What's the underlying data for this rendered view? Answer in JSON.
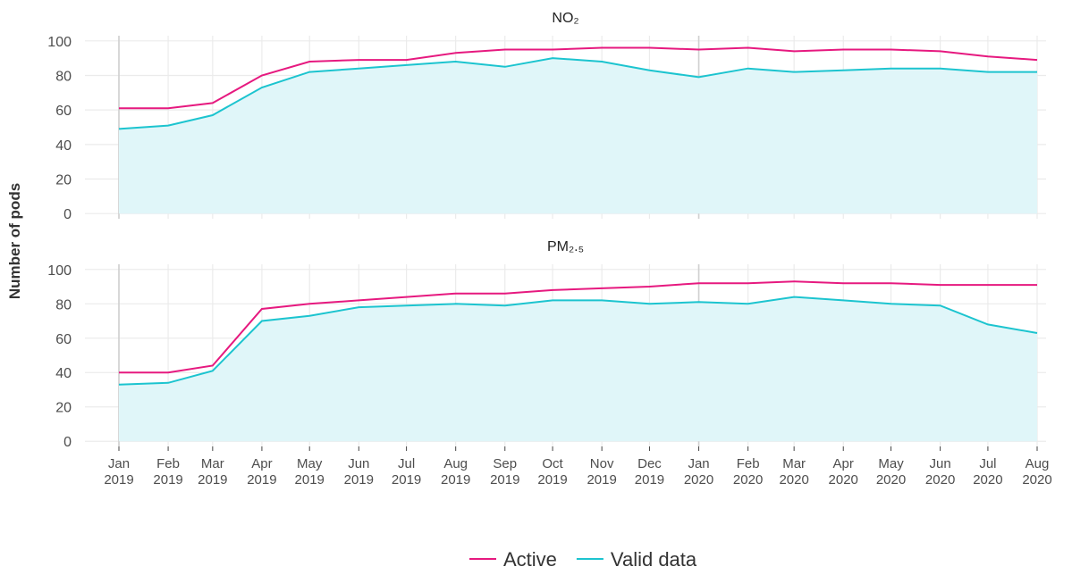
{
  "ylabel": "Number of pods",
  "xlim": [
    "2019-01",
    "2020-08"
  ],
  "xticks": [
    {
      "value": "2019-01",
      "label": "Jan 2019"
    },
    {
      "value": "2019-02",
      "label": "Feb 2019"
    },
    {
      "value": "2019-03",
      "label": "Mar 2019"
    },
    {
      "value": "2019-04",
      "label": "Apr 2019"
    },
    {
      "value": "2019-05",
      "label": "May 2019"
    },
    {
      "value": "2019-06",
      "label": "Jun 2019"
    },
    {
      "value": "2019-07",
      "label": "Jul 2019"
    },
    {
      "value": "2019-08",
      "label": "Aug 2019"
    },
    {
      "value": "2019-09",
      "label": "Sep 2019"
    },
    {
      "value": "2019-10",
      "label": "Oct 2019"
    },
    {
      "value": "2019-11",
      "label": "Nov 2019"
    },
    {
      "value": "2019-12",
      "label": "Dec 2019"
    },
    {
      "value": "2020-01",
      "label": "Jan 2020"
    },
    {
      "value": "2020-02",
      "label": "Feb 2020"
    },
    {
      "value": "2020-03",
      "label": "Mar 2020"
    },
    {
      "value": "2020-04",
      "label": "Apr 2020"
    },
    {
      "value": "2020-05",
      "label": "May 2020"
    },
    {
      "value": "2020-06",
      "label": "Jun 2020"
    },
    {
      "value": "2020-07",
      "label": "Jul 2020"
    },
    {
      "value": "2020-08",
      "label": "Aug 2020"
    }
  ],
  "chart_data": [
    {
      "type": "line",
      "title": "NO₂",
      "ylim": [
        -3,
        103
      ],
      "yticks": [
        0,
        20,
        40,
        60,
        80,
        100
      ],
      "grid": true,
      "area_fill": "#e0f6f9",
      "x": [
        "2019-01",
        "2019-02",
        "2019-03",
        "2019-04",
        "2019-05",
        "2019-06",
        "2019-07",
        "2019-08",
        "2019-09",
        "2019-10",
        "2019-11",
        "2019-12",
        "2020-01",
        "2020-02",
        "2020-03",
        "2020-04",
        "2020-05",
        "2020-06",
        "2020-07",
        "2020-08"
      ],
      "series": [
        {
          "name": "Active",
          "color": "#e6197f",
          "values": [
            61,
            61,
            64,
            80,
            88,
            89,
            89,
            93,
            95,
            95,
            96,
            96,
            95,
            96,
            94,
            95,
            95,
            94,
            91,
            89
          ]
        },
        {
          "name": "Valid data",
          "color": "#1cc4cf",
          "values": [
            49,
            51,
            57,
            73,
            82,
            84,
            86,
            88,
            85,
            90,
            88,
            83,
            79,
            84,
            82,
            83,
            84,
            84,
            82,
            82
          ]
        }
      ]
    },
    {
      "type": "line",
      "title": "PM₂.₅",
      "ylim": [
        -3,
        103
      ],
      "yticks": [
        0,
        20,
        40,
        60,
        80,
        100
      ],
      "grid": true,
      "area_fill": "#e0f6f9",
      "x": [
        "2019-01",
        "2019-02",
        "2019-03",
        "2019-04",
        "2019-05",
        "2019-06",
        "2019-07",
        "2019-08",
        "2019-09",
        "2019-10",
        "2019-11",
        "2019-12",
        "2020-01",
        "2020-02",
        "2020-03",
        "2020-04",
        "2020-05",
        "2020-06",
        "2020-07",
        "2020-08"
      ],
      "series": [
        {
          "name": "Active",
          "color": "#e6197f",
          "values": [
            40,
            40,
            44,
            77,
            80,
            82,
            84,
            86,
            86,
            88,
            89,
            90,
            92,
            92,
            93,
            92,
            92,
            91,
            91,
            91
          ]
        },
        {
          "name": "Valid data",
          "color": "#1cc4cf",
          "values": [
            33,
            34,
            41,
            70,
            73,
            78,
            79,
            80,
            79,
            82,
            82,
            80,
            81,
            80,
            84,
            82,
            80,
            79,
            68,
            63
          ]
        }
      ]
    }
  ]
}
